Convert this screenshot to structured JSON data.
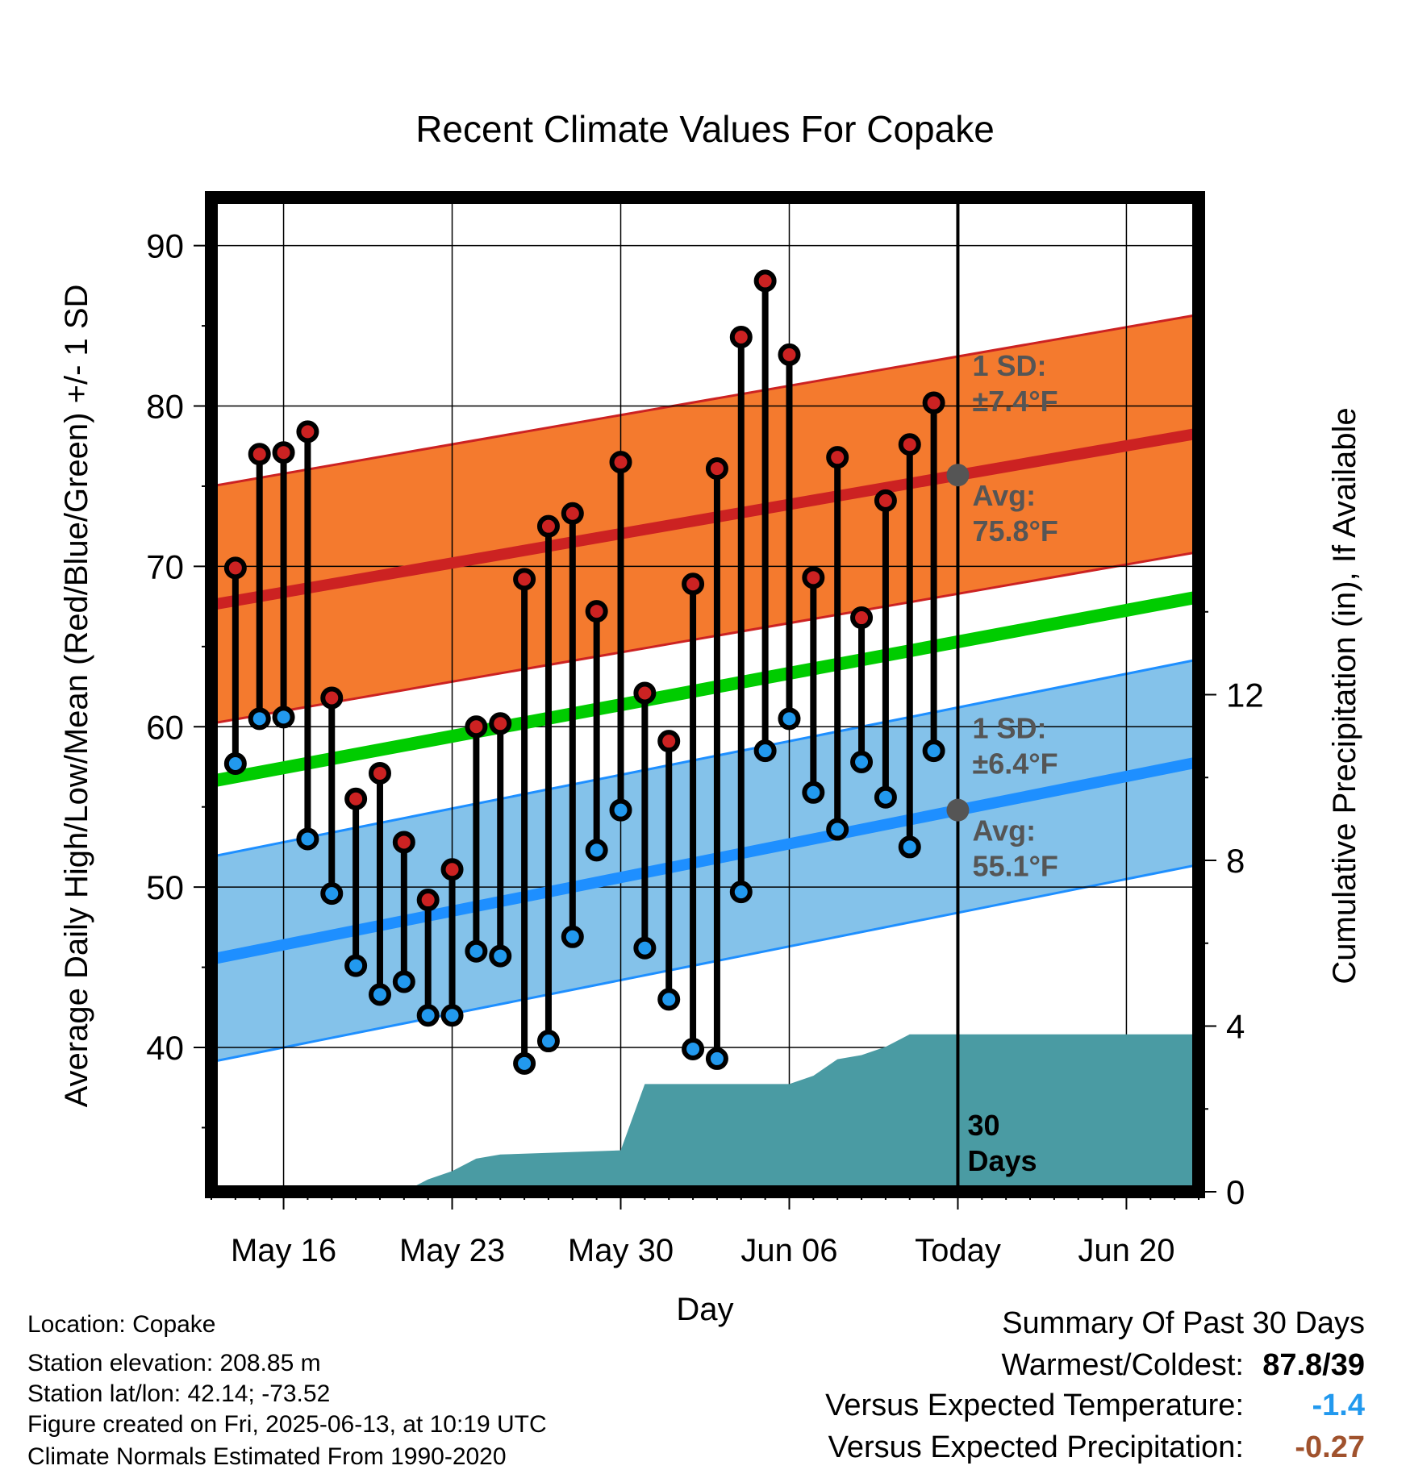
{
  "chart_data": {
    "type": "line",
    "title": "Recent Climate Values For Copake",
    "xlabel": "Day",
    "ylabel": "Average Daily High/Low/Mean (Red/Blue/Green) +/- 1 SD",
    "y2label": "Cumulative Precipitation (in), If Available",
    "x_tick_labels": [
      "May 16",
      "May 23",
      "May 30",
      "Jun 06",
      "Today",
      "Jun 20"
    ],
    "y_ticks": [
      "40",
      "50",
      "60",
      "70",
      "80",
      "90"
    ],
    "y2_ticks": [
      "0",
      "4",
      "8",
      "12"
    ],
    "ylim": [
      31,
      93
    ],
    "y2lim": [
      0,
      24
    ],
    "x_range": [
      "2025-05-13",
      "2025-06-23"
    ],
    "today": "2025-06-13",
    "grid": true,
    "dates": [
      "2025-05-14",
      "2025-05-15",
      "2025-05-16",
      "2025-05-17",
      "2025-05-18",
      "2025-05-19",
      "2025-05-20",
      "2025-05-21",
      "2025-05-22",
      "2025-05-23",
      "2025-05-24",
      "2025-05-25",
      "2025-05-26",
      "2025-05-27",
      "2025-05-28",
      "2025-05-29",
      "2025-05-30",
      "2025-05-31",
      "2025-06-01",
      "2025-06-02",
      "2025-06-03",
      "2025-06-04",
      "2025-06-05",
      "2025-06-06",
      "2025-06-07",
      "2025-06-08",
      "2025-06-09",
      "2025-06-10",
      "2025-06-11",
      "2025-06-12"
    ],
    "series": [
      {
        "name": "High",
        "color": "#cc2222",
        "values": [
          69.9,
          77.0,
          77.1,
          78.4,
          61.8,
          55.5,
          57.1,
          52.8,
          49.2,
          51.1,
          60.0,
          60.2,
          69.2,
          72.5,
          73.3,
          67.2,
          76.5,
          62.1,
          59.1,
          68.9,
          76.1,
          84.3,
          87.8,
          83.2,
          69.3,
          76.8,
          66.8,
          74.1,
          77.6,
          80.2
        ]
      },
      {
        "name": "Low",
        "color": "#2299ee",
        "values": [
          57.7,
          60.5,
          60.6,
          53.0,
          49.6,
          45.1,
          43.3,
          44.1,
          42.0,
          42.0,
          46.0,
          45.7,
          39.0,
          40.4,
          46.9,
          52.3,
          54.8,
          46.2,
          43.0,
          39.9,
          39.3,
          49.7,
          58.5,
          60.5,
          55.9,
          53.6,
          57.8,
          55.6,
          52.5,
          58.5
        ]
      }
    ],
    "normals": {
      "high_avg": {
        "start": 67.6,
        "end": 78.3,
        "color": "#cc2222"
      },
      "low_avg": {
        "start": 45.5,
        "end": 57.8,
        "color": "#1e8fff"
      },
      "mean": {
        "start": 56.6,
        "end": 68.1,
        "color": "#00cc00"
      },
      "high_band": {
        "sd": 7.4,
        "color": "#f47a2e"
      },
      "low_band": {
        "sd": 6.4,
        "color": "#84c2ea"
      }
    },
    "precipitation": {
      "color": "#4a9ba3",
      "points": [
        [
          "2025-05-13",
          0
        ],
        [
          "2025-05-21",
          0
        ],
        [
          "2025-05-22",
          0.3
        ],
        [
          "2025-05-23",
          0.5
        ],
        [
          "2025-05-24",
          0.8
        ],
        [
          "2025-05-25",
          0.9
        ],
        [
          "2025-05-30",
          1.0
        ],
        [
          "2025-05-31",
          2.6
        ],
        [
          "2025-06-06",
          2.6
        ],
        [
          "2025-06-07",
          2.8
        ],
        [
          "2025-06-08",
          3.2
        ],
        [
          "2025-06-09",
          3.3
        ],
        [
          "2025-06-10",
          3.5
        ],
        [
          "2025-06-11",
          3.8
        ],
        [
          "2025-06-23",
          3.8
        ]
      ]
    },
    "annotations": {
      "high_sd": [
        "1 SD:",
        "±7.4°F"
      ],
      "high_avg": [
        "Avg:",
        "75.8°F"
      ],
      "low_sd": [
        "1 SD:",
        "±6.4°F"
      ],
      "low_avg": [
        "Avg:",
        "55.1°F"
      ],
      "days": [
        "30",
        "Days"
      ],
      "annotation_color": "#555555"
    }
  },
  "footer": {
    "location": "Location: Copake",
    "elevation": "Station elevation: 208.85 m",
    "latlon": "Station lat/lon: 42.14; -73.52",
    "created": "Figure created on Fri, 2025-06-13, at 10:19 UTC",
    "normals": "Climate Normals Estimated From 1990-2020"
  },
  "summary": {
    "title": "Summary Of Past 30 Days",
    "warmest_label": "Warmest/Coldest:",
    "warmest_value": "87.8/39",
    "temp_label": "Versus Expected Temperature:",
    "temp_value": "-1.4",
    "temp_color": "#2299ee",
    "precip_label": "Versus Expected Precipitation:",
    "precip_value": "-0.27",
    "precip_color": "#a0522d"
  }
}
